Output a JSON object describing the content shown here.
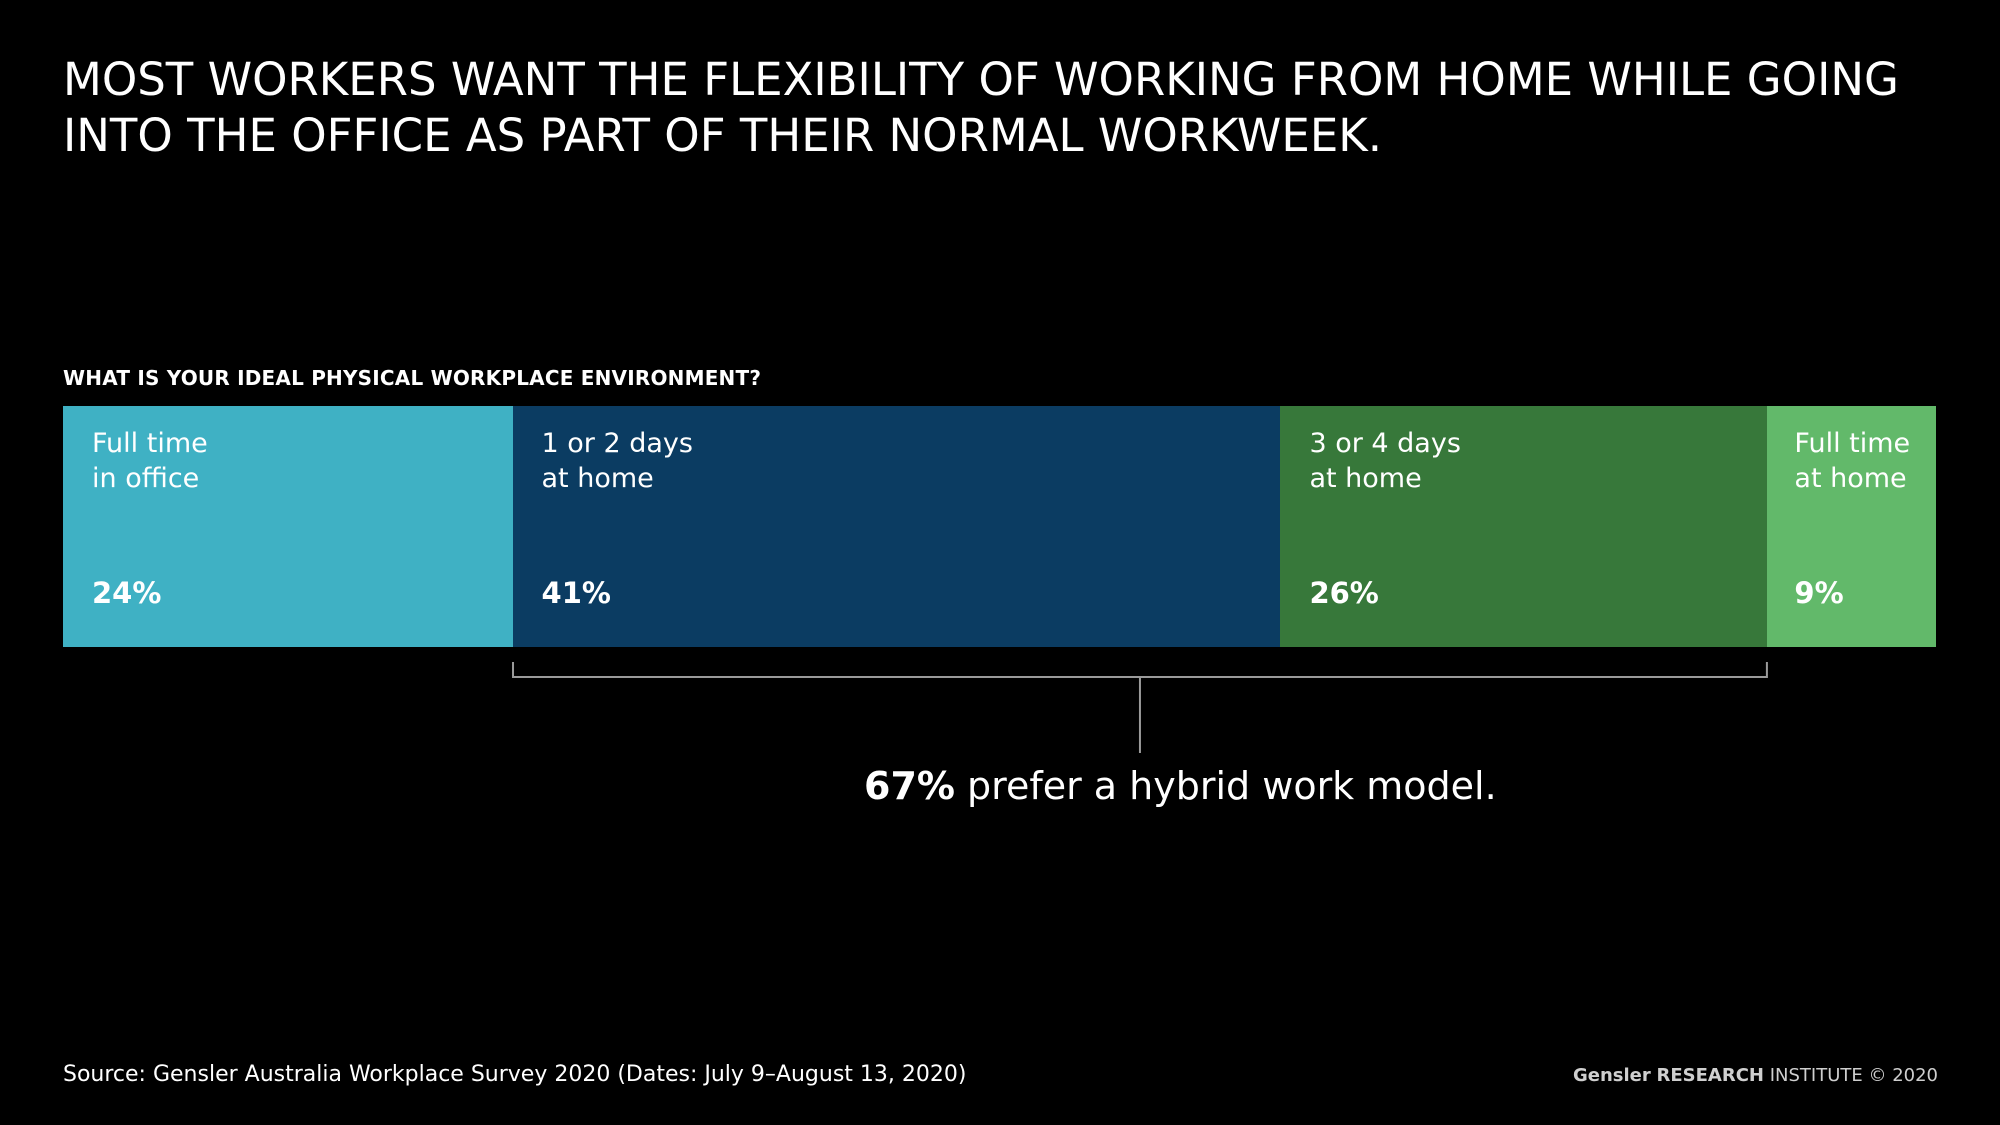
{
  "title": {
    "line1": "MOST WORKERS WANT THE FLEXIBILITY OF WORKING FROM HOME WHILE GOING",
    "line2": "INTO THE OFFICE AS PART OF THEIR NORMAL WORKWEEK."
  },
  "chart_data": {
    "type": "bar",
    "orientation": "horizontal-stacked",
    "title": "WHAT IS YOUR IDEAL PHYSICAL WORKPLACE ENVIRONMENT?",
    "unit": "%",
    "segments": [
      {
        "label": "Full time\nin office",
        "value": 24,
        "value_label": "24%",
        "color": "#3fb1c4"
      },
      {
        "label": "1 or 2 days\nat home",
        "value": 41,
        "value_label": "41%",
        "color": "#0b3c62"
      },
      {
        "label": "3 or 4 days\nat home",
        "value": 26,
        "value_label": "26%",
        "color": "#37783a"
      },
      {
        "label": "Full time\nat home",
        "value": 9,
        "value_label": "9%",
        "color": "#62b96a"
      }
    ],
    "bracket": {
      "from_segment": 1,
      "to_segment": 2
    },
    "annotation": {
      "value_label": "67%",
      "text": " prefer a hybrid work model."
    }
  },
  "footer": {
    "source": "Source: Gensler Australia Workplace Survey 2020 (Dates: July 9–August 13, 2020)",
    "credit_brand": "Gensler",
    "credit_research": "RESEARCH",
    "credit_rest": "INSTITUTE © 2020"
  },
  "colors": {
    "background": "#000000",
    "text": "#ffffff",
    "bracket": "#9a9a9a"
  }
}
